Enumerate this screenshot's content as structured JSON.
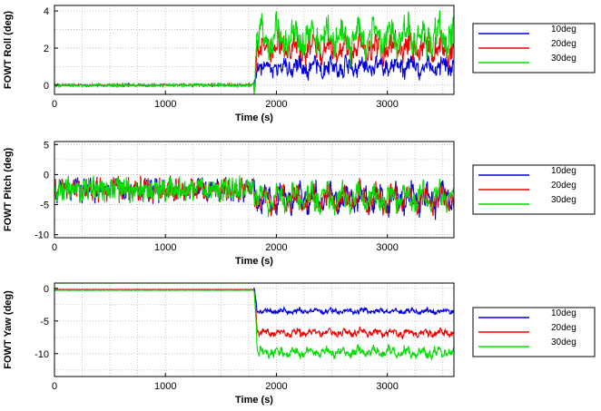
{
  "colors": {
    "10deg": "#0000dd",
    "20deg": "#ee0000",
    "30deg": "#00dd00",
    "grid": "#b8b8b8"
  },
  "chart_data": [
    {
      "type": "line",
      "xlabel": "Time (s)",
      "ylabel": "FOWT Roll (deg)",
      "xlim": [
        0,
        3600
      ],
      "ylim": [
        -0.5,
        4.3
      ],
      "xticks": [
        0,
        1000,
        2000,
        3000
      ],
      "yticks": [
        0,
        2,
        4
      ],
      "grid": true,
      "legend_position": "right",
      "series": [
        {
          "name": "10deg",
          "pre": 0.0,
          "post": 1.0,
          "amp": 0.35,
          "noise_pre": 0.05,
          "noise_post": 0.35
        },
        {
          "name": "20deg",
          "pre": 0.0,
          "post": 2.0,
          "amp": 0.55,
          "noise_pre": 0.05,
          "noise_post": 0.45
        },
        {
          "name": "30deg",
          "pre": 0.0,
          "post": 2.6,
          "amp": 0.8,
          "noise_pre": 0.06,
          "noise_post": 0.6
        }
      ],
      "step_time": 1800
    },
    {
      "type": "line",
      "xlabel": "Time (s)",
      "ylabel": "FOWT Pitch (deg)",
      "xlim": [
        0,
        3600
      ],
      "ylim": [
        -10.5,
        5.5
      ],
      "xticks": [
        0,
        1000,
        2000,
        3000
      ],
      "yticks": [
        -10,
        -5,
        0,
        5
      ],
      "grid": true,
      "legend_position": "right",
      "series": [
        {
          "name": "10deg",
          "pre": -2.5,
          "post": -4.0,
          "amp": 2.0,
          "noise_pre": 1.6,
          "noise_post": 1.2
        },
        {
          "name": "20deg",
          "pre": -2.5,
          "post": -4.1,
          "amp": 2.0,
          "noise_pre": 1.6,
          "noise_post": 1.2
        },
        {
          "name": "30deg",
          "pre": -2.5,
          "post": -3.9,
          "amp": 2.0,
          "noise_pre": 1.6,
          "noise_post": 1.2
        }
      ],
      "step_time": 1800
    },
    {
      "type": "line",
      "xlabel": "Time (s)",
      "ylabel": "FOWT Yaw (deg)",
      "xlim": [
        0,
        3600
      ],
      "ylim": [
        -13.5,
        0.8
      ],
      "xticks": [
        0,
        1000,
        2000,
        3000
      ],
      "yticks": [
        -10,
        -5,
        0
      ],
      "grid": true,
      "legend_position": "right",
      "series": [
        {
          "name": "10deg",
          "pre": -0.2,
          "post": -3.5,
          "amp": 0.3,
          "noise_pre": 0.03,
          "noise_post": 0.25
        },
        {
          "name": "20deg",
          "pre": -0.2,
          "post": -6.8,
          "amp": 0.5,
          "noise_pre": 0.03,
          "noise_post": 0.35
        },
        {
          "name": "30deg",
          "pre": -0.3,
          "post": -9.8,
          "amp": 0.7,
          "noise_pre": 0.04,
          "noise_post": 0.45
        }
      ],
      "step_time": 1800
    }
  ]
}
